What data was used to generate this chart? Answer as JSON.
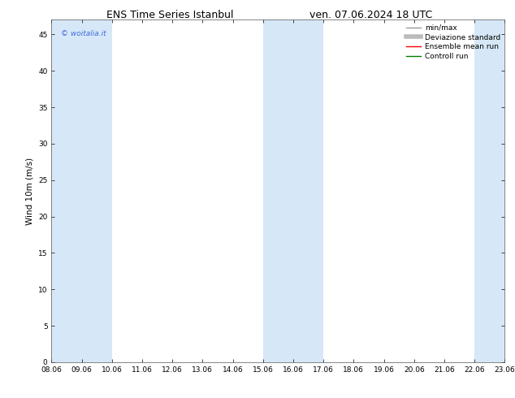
{
  "title_left": "ENS Time Series Istanbul",
  "title_right": "ven. 07.06.2024 18 UTC",
  "ylabel": "Wind 10m (m/s)",
  "xlim_start": 8.06,
  "xlim_end": 23.06,
  "ylim": [
    0,
    47
  ],
  "yticks": [
    0,
    5,
    10,
    15,
    20,
    25,
    30,
    35,
    40,
    45
  ],
  "xtick_labels": [
    "08.06",
    "09.06",
    "10.06",
    "11.06",
    "12.06",
    "13.06",
    "14.06",
    "15.06",
    "16.06",
    "17.06",
    "18.06",
    "19.06",
    "20.06",
    "21.06",
    "22.06",
    "23.06"
  ],
  "xtick_positions": [
    8.06,
    9.06,
    10.06,
    11.06,
    12.06,
    13.06,
    14.06,
    15.06,
    16.06,
    17.06,
    18.06,
    19.06,
    20.06,
    21.06,
    22.06,
    23.06
  ],
  "shaded_regions": [
    [
      8.06,
      9.06
    ],
    [
      9.06,
      10.06
    ],
    [
      15.06,
      16.06
    ],
    [
      16.06,
      17.06
    ],
    [
      22.06,
      23.06
    ]
  ],
  "shaded_color": "#d6e8f7",
  "watermark_text": "© woitalia.it",
  "watermark_color": "#4169E1",
  "legend_entries": [
    {
      "label": "min/max",
      "color": "#999999",
      "lw": 1.0,
      "ls": "-"
    },
    {
      "label": "Deviazione standard",
      "color": "#bbbbbb",
      "lw": 4,
      "ls": "-"
    },
    {
      "label": "Ensemble mean run",
      "color": "red",
      "lw": 1.0,
      "ls": "-"
    },
    {
      "label": "Controll run",
      "color": "green",
      "lw": 1.0,
      "ls": "-"
    }
  ],
  "bg_color": "#ffffff",
  "spine_color": "#555555",
  "title_fontsize": 9,
  "tick_fontsize": 6.5,
  "ylabel_fontsize": 7.5,
  "legend_fontsize": 6.5,
  "watermark_fontsize": 6.5
}
